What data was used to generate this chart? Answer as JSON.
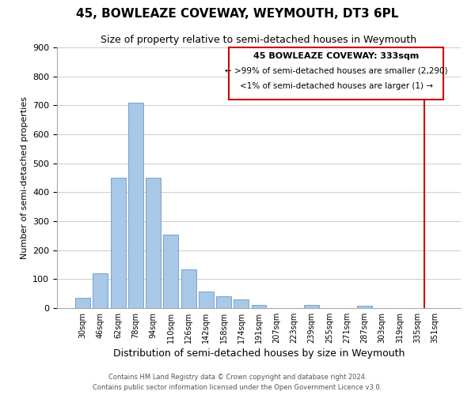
{
  "title": "45, BOWLEAZE COVEWAY, WEYMOUTH, DT3 6PL",
  "subtitle": "Size of property relative to semi-detached houses in Weymouth",
  "xlabel": "Distribution of semi-detached houses by size in Weymouth",
  "ylabel": "Number of semi-detached properties",
  "categories": [
    "30sqm",
    "46sqm",
    "62sqm",
    "78sqm",
    "94sqm",
    "110sqm",
    "126sqm",
    "142sqm",
    "158sqm",
    "174sqm",
    "191sqm",
    "207sqm",
    "223sqm",
    "239sqm",
    "255sqm",
    "271sqm",
    "287sqm",
    "303sqm",
    "319sqm",
    "335sqm",
    "351sqm"
  ],
  "values": [
    35,
    120,
    450,
    710,
    450,
    255,
    135,
    57,
    40,
    30,
    10,
    0,
    0,
    10,
    0,
    0,
    8,
    0,
    0,
    0,
    0
  ],
  "bar_color": "#a8c8e8",
  "bar_edge_color": "#5588bb",
  "grid_color": "#cccccc",
  "annotation_box_color": "#cc0000",
  "property_line_color": "#cc0000",
  "property_label": "45 BOWLEAZE COVEWAY: 333sqm",
  "smaller_text": "← >99% of semi-detached houses are smaller (2,290)",
  "larger_text": "<1% of semi-detached houses are larger (1) →",
  "ylim": [
    0,
    900
  ],
  "yticks": [
    0,
    100,
    200,
    300,
    400,
    500,
    600,
    700,
    800,
    900
  ],
  "footnote1": "Contains HM Land Registry data © Crown copyright and database right 2024.",
  "footnote2": "Contains public sector information licensed under the Open Government Licence v3.0.",
  "background_color": "#ffffff",
  "title_fontsize": 11,
  "subtitle_fontsize": 9
}
